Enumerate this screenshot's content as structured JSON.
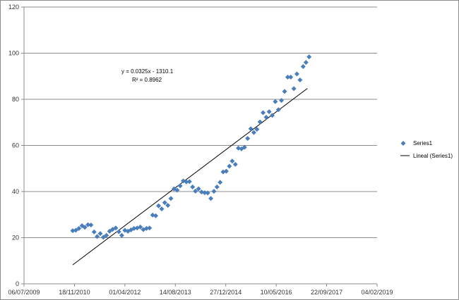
{
  "chart_data": {
    "type": "scatter",
    "title": "",
    "xlabel": "",
    "ylabel": "",
    "x_axis": {
      "kind": "date",
      "min": "2009-07-06",
      "max": "2019-02-04",
      "tick_labels": [
        "06/07/2009",
        "18/11/2010",
        "01/04/2012",
        "14/08/2013",
        "27/12/2014",
        "10/05/2016",
        "22/09/2017",
        "04/02/2019"
      ]
    },
    "y_axis": {
      "min": 0,
      "max": 120,
      "step": 20,
      "tick_labels": [
        "0",
        "20",
        "40",
        "60",
        "80",
        "100",
        "120"
      ]
    },
    "grid": "horizontal",
    "legend_position": "right",
    "series": [
      {
        "name": "Series1",
        "marker": "diamond",
        "color": "#4a7ebb",
        "points": [
          [
            "2010-11-01",
            23
          ],
          [
            "2010-12-01",
            23.2
          ],
          [
            "2011-01-01",
            24
          ],
          [
            "2011-02-01",
            25.2
          ],
          [
            "2011-03-01",
            24.5
          ],
          [
            "2011-04-01",
            25.6
          ],
          [
            "2011-05-01",
            25.5
          ],
          [
            "2011-06-01",
            22.5
          ],
          [
            "2011-07-01",
            20.5
          ],
          [
            "2011-08-01",
            21.8
          ],
          [
            "2011-09-01",
            20.2
          ],
          [
            "2011-10-01",
            21
          ],
          [
            "2011-11-01",
            22.8
          ],
          [
            "2011-12-01",
            23.6
          ],
          [
            "2012-01-01",
            24.2
          ],
          [
            "2012-02-01",
            22.6
          ],
          [
            "2012-03-01",
            21
          ],
          [
            "2012-04-01",
            23.2
          ],
          [
            "2012-05-01",
            22.8
          ],
          [
            "2012-06-01",
            23.4
          ],
          [
            "2012-07-01",
            24
          ],
          [
            "2012-08-01",
            24.2
          ],
          [
            "2012-09-01",
            24.6
          ],
          [
            "2012-10-01",
            23.5
          ],
          [
            "2012-11-01",
            24
          ],
          [
            "2012-12-01",
            24.2
          ],
          [
            "2013-01-01",
            29.8
          ],
          [
            "2013-02-01",
            29.5
          ],
          [
            "2013-03-01",
            33.8
          ],
          [
            "2013-04-01",
            32.5
          ],
          [
            "2013-05-01",
            35.2
          ],
          [
            "2013-06-01",
            34
          ],
          [
            "2013-07-01",
            37
          ],
          [
            "2013-08-01",
            41.2
          ],
          [
            "2013-09-01",
            40.6
          ],
          [
            "2013-10-01",
            42.5
          ],
          [
            "2013-11-01",
            44.6
          ],
          [
            "2013-12-01",
            44.2
          ],
          [
            "2014-01-01",
            44.3
          ],
          [
            "2014-02-01",
            42
          ],
          [
            "2014-03-01",
            40.2
          ],
          [
            "2014-04-01",
            41.2
          ],
          [
            "2014-05-01",
            39.8
          ],
          [
            "2014-06-01",
            39.5
          ],
          [
            "2014-07-01",
            39.4
          ],
          [
            "2014-08-01",
            37
          ],
          [
            "2014-09-01",
            40.1
          ],
          [
            "2014-10-01",
            42
          ],
          [
            "2014-11-01",
            44
          ],
          [
            "2014-12-01",
            48.5
          ],
          [
            "2015-01-01",
            48.8
          ],
          [
            "2015-02-01",
            51
          ],
          [
            "2015-03-01",
            53.2
          ],
          [
            "2015-04-01",
            51.8
          ],
          [
            "2015-05-01",
            58.8
          ],
          [
            "2015-06-01",
            58.5
          ],
          [
            "2015-07-01",
            59.2
          ],
          [
            "2015-08-01",
            63
          ],
          [
            "2015-09-01",
            67.2
          ],
          [
            "2015-10-01",
            65.6
          ],
          [
            "2015-11-01",
            67
          ],
          [
            "2015-12-01",
            70.2
          ],
          [
            "2016-01-01",
            74.2
          ],
          [
            "2016-02-01",
            72.2
          ],
          [
            "2016-03-01",
            74.6
          ],
          [
            "2016-04-01",
            73
          ],
          [
            "2016-05-01",
            79
          ],
          [
            "2016-06-01",
            75.5
          ],
          [
            "2016-07-01",
            79.5
          ],
          [
            "2016-08-01",
            83.4
          ],
          [
            "2016-09-01",
            89.6
          ],
          [
            "2016-10-01",
            89.6
          ],
          [
            "2016-11-01",
            84.6
          ],
          [
            "2016-12-01",
            91
          ],
          [
            "2017-01-01",
            88.4
          ],
          [
            "2017-02-01",
            94.2
          ],
          [
            "2017-03-01",
            96
          ],
          [
            "2017-04-01",
            98.4
          ]
        ]
      }
    ],
    "trendline": {
      "name": "Lineal (Series1)",
      "type": "linear",
      "color": "#000000",
      "equation": "y = 0.0325x - 1310.1",
      "r_squared": "R² = 0.8962",
      "from": [
        "2010-11-01",
        8.2
      ],
      "to": [
        "2017-03-15",
        84.7
      ]
    }
  }
}
